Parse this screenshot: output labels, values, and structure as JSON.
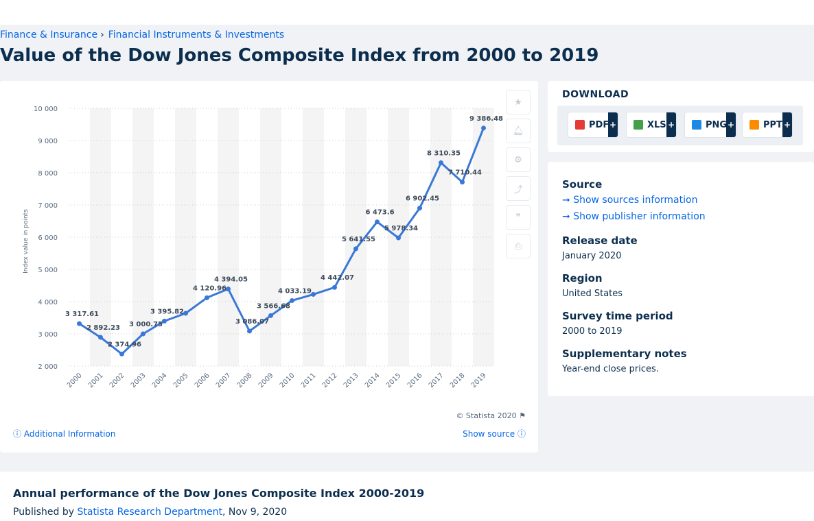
{
  "breadcrumb": {
    "item1": "Finance & Insurance",
    "sep": "›",
    "item2": "Financial Instruments & Investments"
  },
  "page_title": "Value of the Dow Jones Composite Index from 2000 to 2019",
  "chart_tools": [
    "star-icon",
    "bell-icon",
    "gear-icon",
    "share-icon",
    "quote-icon",
    "print-icon"
  ],
  "chart_footer": {
    "copyright": "© Statista 2020",
    "additional_info": "Additional Information",
    "show_source": "Show source"
  },
  "download": {
    "heading": "DOWNLOAD",
    "buttons": [
      {
        "label": "PDF",
        "plus": "+",
        "color": "#e53935"
      },
      {
        "label": "XLS",
        "plus": "+",
        "color": "#43a047"
      },
      {
        "label": "PNG",
        "plus": "+",
        "color": "#1e88e5"
      },
      {
        "label": "PPT",
        "plus": "+",
        "color": "#fb8c00"
      }
    ]
  },
  "meta": {
    "source_heading": "Source",
    "show_sources": "Show sources information",
    "show_publisher": "Show publisher information",
    "release_heading": "Release date",
    "release_value": "January 2020",
    "region_heading": "Region",
    "region_value": "United States",
    "survey_heading": "Survey time period",
    "survey_value": "2000 to 2019",
    "notes_heading": "Supplementary notes",
    "notes_value": "Year-end close prices."
  },
  "bottom": {
    "title": "Annual performance of the Dow Jones Composite Index 2000-2019",
    "published_by": "Published by",
    "org": "Statista Research Department",
    "date": ", Nov 9, 2020"
  },
  "colors": {
    "line": "#3a78d8",
    "accent": "#0666e5",
    "navy": "#0c2e4e"
  },
  "chart_data": {
    "type": "line",
    "categories": [
      "2000",
      "2001",
      "2002",
      "2003",
      "2004",
      "2005",
      "2006",
      "2007",
      "2008",
      "2009",
      "2010",
      "2011",
      "2012",
      "2013",
      "2014",
      "2015",
      "2016",
      "2017",
      "2018",
      "2019"
    ],
    "series": [
      {
        "values": [
          3317.61,
          2892.23,
          2374.96,
          3000.75,
          3395.82,
          3638.06,
          4120.96,
          4394.05,
          3086.07,
          3566.68,
          4033.19,
          4226.0,
          4442.07,
          5641.55,
          6473.6,
          5978.34,
          6902.45,
          8310.35,
          7710.44,
          9386.48
        ],
        "labels": [
          "3 317.61",
          "2 892.23",
          "2 374.96",
          "3 000.75",
          "3 395.82",
          "",
          "4 120.96",
          "4 394.05",
          "3 086.07",
          "3 566.68",
          "4 033.19",
          "",
          "4 442.07",
          "5 641.55",
          "6 473.6",
          "5 978.34",
          "6 902.45",
          "8 310.35",
          "7 710.44",
          "9 386.48"
        ]
      }
    ],
    "ylabel": "Index value in points",
    "xlabel": "",
    "ylim": [
      2000,
      10000
    ],
    "yticks": [
      2000,
      3000,
      4000,
      5000,
      6000,
      7000,
      8000,
      9000,
      10000
    ],
    "ytick_labels": [
      "2 000",
      "3 000",
      "4 000",
      "5 000",
      "6 000",
      "7 000",
      "8 000",
      "9 000",
      "10 000"
    ],
    "grid": true,
    "legend": "none"
  }
}
